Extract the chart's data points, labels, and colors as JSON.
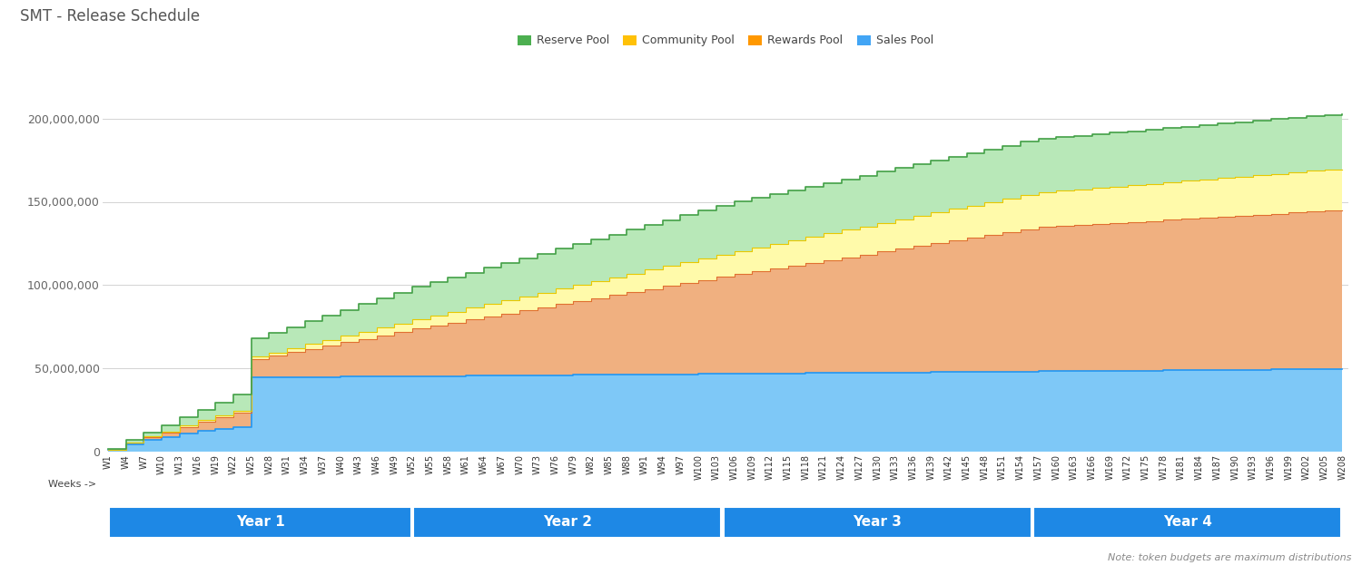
{
  "title": "SMT - Release Schedule",
  "legend_labels": [
    "Reserve Pool",
    "Community Pool",
    "Rewards Pool",
    "Sales Pool"
  ],
  "legend_colors_fill": [
    "#66bb6a",
    "#ffee58",
    "#ffa07a",
    "#64b5f6"
  ],
  "legend_colors_edge": [
    "#43a047",
    "#f9a825",
    "#e65100",
    "#1565c0"
  ],
  "note_text": "Note: token budgets are maximum distributions",
  "year_labels": [
    "Year 1",
    "Year 2",
    "Year 3",
    "Year 4"
  ],
  "background_color": "#ffffff",
  "ylim": [
    0,
    210000000
  ],
  "yticks": [
    0,
    50000000,
    100000000,
    150000000,
    200000000
  ],
  "ytick_labels": [
    "0",
    "50,000,000",
    "100,000,000",
    "150,000,000",
    "200,000,000"
  ],
  "sales_color": "#7ec8f7",
  "sales_edge": "#2196f3",
  "rewards_color": "#f0b080",
  "rewards_edge": "#e07030",
  "community_color": "#fffaaa",
  "community_edge": "#e8c800",
  "reserve_color": "#b8e8b8",
  "reserve_edge": "#43a047"
}
